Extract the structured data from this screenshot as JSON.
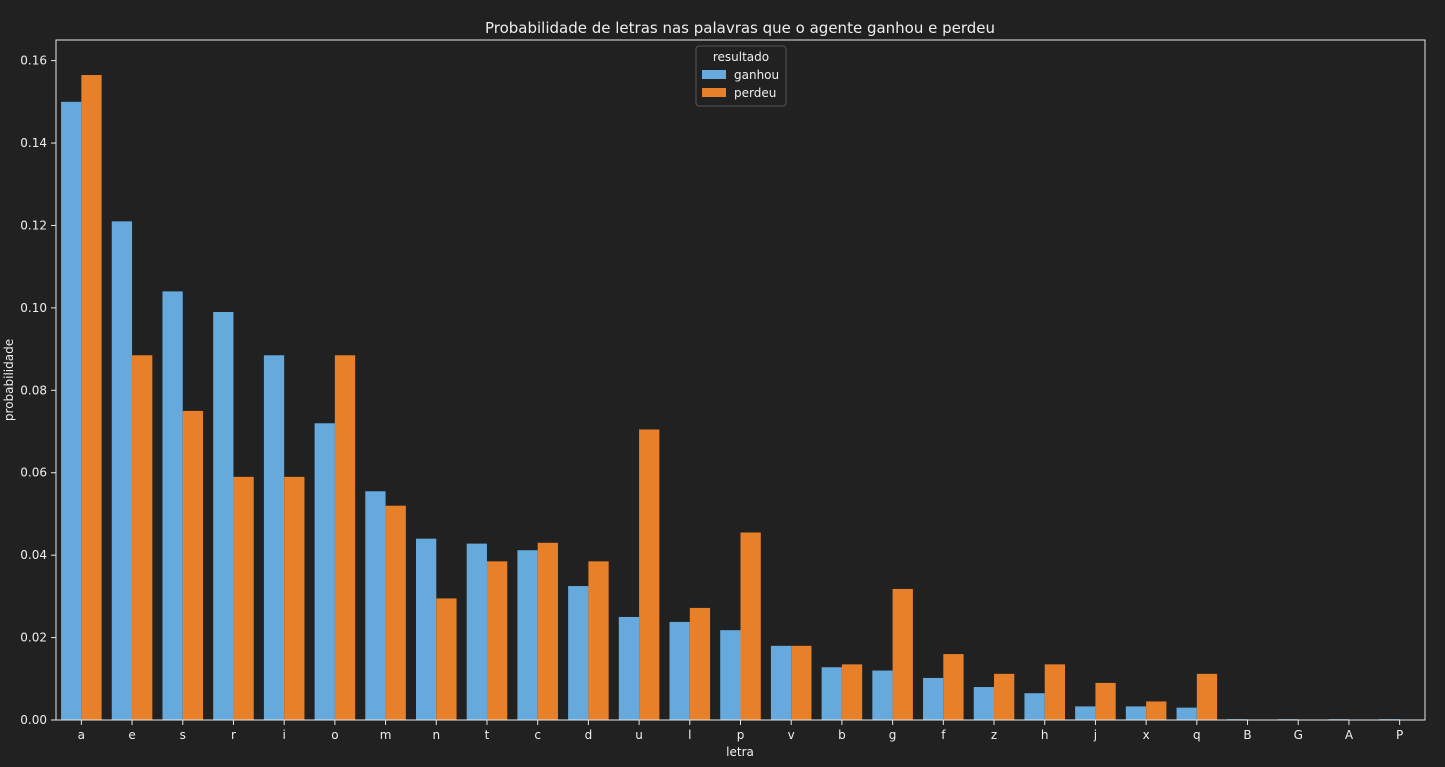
{
  "chart_data": {
    "type": "bar",
    "title": "Probabilidade de letras nas palavras que o agente ganhou e perdeu",
    "xlabel": "letra",
    "ylabel": "probabilidade",
    "ylim": [
      0,
      0.165
    ],
    "yticks": [
      0.0,
      0.02,
      0.04,
      0.06,
      0.08,
      0.1,
      0.12,
      0.14,
      0.16
    ],
    "grid": false,
    "categories": [
      "a",
      "e",
      "s",
      "r",
      "i",
      "o",
      "m",
      "n",
      "t",
      "c",
      "d",
      "u",
      "l",
      "p",
      "v",
      "b",
      "g",
      "f",
      "z",
      "h",
      "j",
      "x",
      "q",
      "B",
      "G",
      "A",
      "P"
    ],
    "legend": {
      "title": "resultado",
      "placement": "top-center"
    },
    "series": [
      {
        "name": "ganhou",
        "color": "#66a9dc",
        "values": [
          0.15,
          0.121,
          0.104,
          0.099,
          0.0885,
          0.072,
          0.0555,
          0.044,
          0.0428,
          0.0412,
          0.0325,
          0.025,
          0.0238,
          0.0218,
          0.018,
          0.0128,
          0.012,
          0.0102,
          0.008,
          0.0065,
          0.0033,
          0.0033,
          0.003,
          0.0002,
          0.0002,
          0.0002,
          0.0002
        ]
      },
      {
        "name": "perdeu",
        "color": "#e8802a",
        "values": [
          0.1565,
          0.0885,
          0.075,
          0.059,
          0.059,
          0.0885,
          0.052,
          0.0295,
          0.0385,
          0.043,
          0.0385,
          0.0705,
          0.0272,
          0.0455,
          0.018,
          0.0135,
          0.0318,
          0.016,
          0.0112,
          0.0135,
          0.009,
          0.0045,
          0.0112,
          0,
          0,
          0,
          0
        ]
      }
    ]
  }
}
